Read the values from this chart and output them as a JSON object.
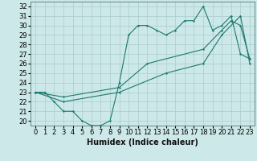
{
  "bg_color": "#cde8e8",
  "grid_color": "#aacccc",
  "line_color": "#1a7a6e",
  "xlabel": "Humidex (Indice chaleur)",
  "xlim": [
    -0.5,
    23.5
  ],
  "ylim": [
    19.5,
    32.5
  ],
  "yticks": [
    20,
    21,
    22,
    23,
    24,
    25,
    26,
    27,
    28,
    29,
    30,
    31,
    32
  ],
  "xticks": [
    0,
    1,
    2,
    3,
    4,
    5,
    6,
    7,
    8,
    9,
    10,
    11,
    12,
    13,
    14,
    15,
    16,
    17,
    18,
    19,
    20,
    21,
    22,
    23
  ],
  "line1_x": [
    0,
    1,
    2,
    3,
    4,
    5,
    6,
    7,
    8,
    9,
    10,
    11,
    12,
    13,
    14,
    15,
    16,
    17,
    18,
    19,
    20,
    21,
    22,
    23
  ],
  "line1_y": [
    23,
    23,
    22,
    21,
    21,
    20,
    19.5,
    19.5,
    20,
    24,
    29,
    30,
    30,
    29.5,
    29,
    29.5,
    30.5,
    30.5,
    32,
    29.5,
    30,
    31,
    27,
    26.5
  ],
  "line2_x": [
    0,
    3,
    9,
    12,
    18,
    20,
    21,
    22,
    23
  ],
  "line2_y": [
    23,
    22.5,
    23.5,
    26,
    27.5,
    29.5,
    30.5,
    30,
    26.5
  ],
  "line3_x": [
    0,
    3,
    9,
    14,
    18,
    20,
    22,
    23
  ],
  "line3_y": [
    23,
    22,
    23,
    25,
    26,
    29,
    31,
    26
  ],
  "xlabel_fontsize": 7,
  "tick_fontsize": 6
}
